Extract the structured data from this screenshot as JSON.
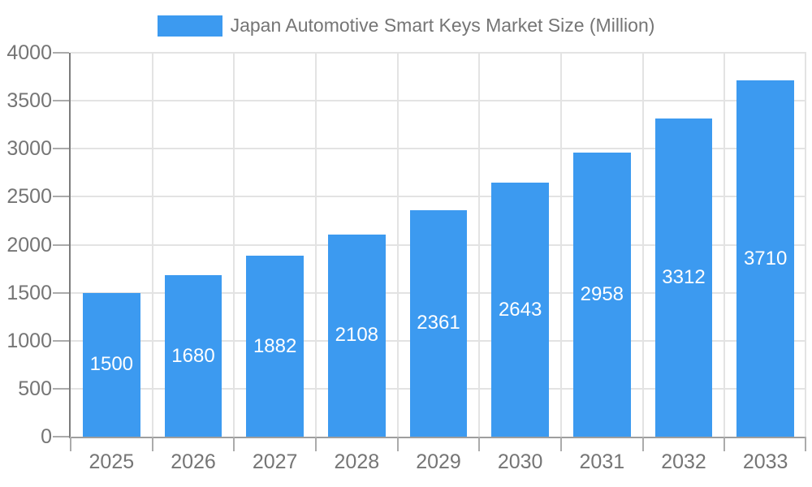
{
  "legend": {
    "label": "Japan Automotive Smart Keys Market Size (Million)"
  },
  "colors": {
    "bar": "#3c9af0",
    "bar_value_text": "#ffffff",
    "axis_text": "#757575",
    "legend_text": "#757575",
    "grid": "#e3e3e3",
    "tick": "#ababab",
    "y_axis_line": "#7c7c7c",
    "x_axis_line": "#9e9e9e",
    "background": "#ffffff"
  },
  "chart_data": {
    "type": "bar",
    "title": "Japan Automotive Smart Keys Market Size (Million)",
    "series_name": "Japan Automotive Smart Keys Market Size (Million)",
    "categories": [
      "2025",
      "2026",
      "2027",
      "2028",
      "2029",
      "2030",
      "2031",
      "2032",
      "2033"
    ],
    "values": [
      1500,
      1680,
      1882,
      2108,
      2361,
      2643,
      2958,
      3312,
      3710
    ],
    "bar_labels": [
      "1500",
      "1680",
      "1882",
      "2108",
      "2361",
      "2643",
      "2958",
      "3312",
      "3710"
    ],
    "xlabel": "",
    "ylabel": "",
    "ylim": [
      0,
      4000
    ],
    "y_ticks": [
      0,
      500,
      1000,
      1500,
      2000,
      2500,
      3000,
      3500,
      4000
    ],
    "grid": true,
    "legend_position": "top",
    "bar_width_ratio": 0.7
  }
}
